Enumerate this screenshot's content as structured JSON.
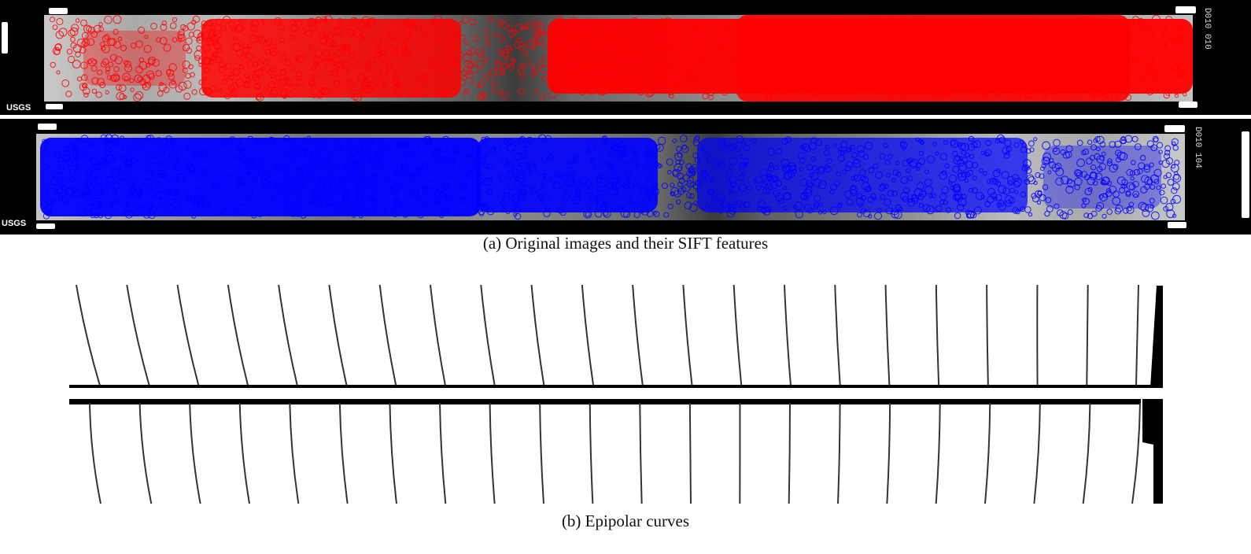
{
  "panel_a": {
    "caption": "(a) Original images and their SIFT features",
    "top_image": {
      "logo": "USGS",
      "frame_label": "D010 010",
      "feature_color": "#ff0000"
    },
    "bottom_image": {
      "logo": "USGS",
      "frame_label": "D010 104",
      "feature_color": "#0000ff"
    }
  },
  "panel_b": {
    "caption": "(b) Epipolar curves",
    "curve_color": "#333333"
  }
}
